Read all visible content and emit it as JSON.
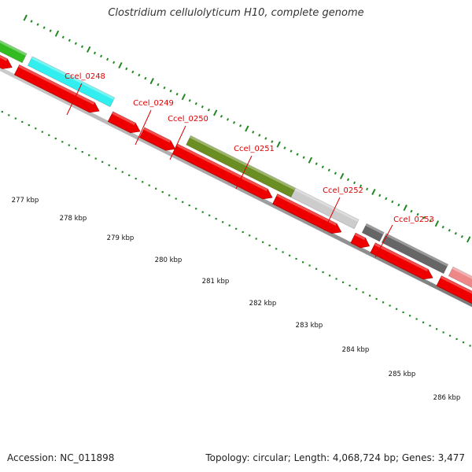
{
  "title": "Clostridium cellulolyticum H10, complete genome",
  "footer": {
    "accession": "Accession: NC_011898",
    "summary": "Topology: circular; Length: 4,068,724 bp; Genes: 3,477"
  },
  "colors": {
    "cds": "#ee0000",
    "backbone": "#999999",
    "tick": "#228822",
    "label": "#dd0000"
  },
  "gene_labels": [
    "Ccel_0248",
    "Ccel_0249",
    "Ccel_0250",
    "Ccel_0251",
    "Ccel_0252",
    "Ccel_0253"
  ],
  "kbp_labels": [
    "277 kbp",
    "278 kbp",
    "279 kbp",
    "280 kbp",
    "281 kbp",
    "282 kbp",
    "283 kbp",
    "284 kbp",
    "285 kbp",
    "286 kbp"
  ],
  "cog_colors": [
    "#33bb22",
    "#33eeee",
    "#6b8e23",
    "#cccccc",
    "#666666",
    "#666666",
    "#ee8888"
  ]
}
